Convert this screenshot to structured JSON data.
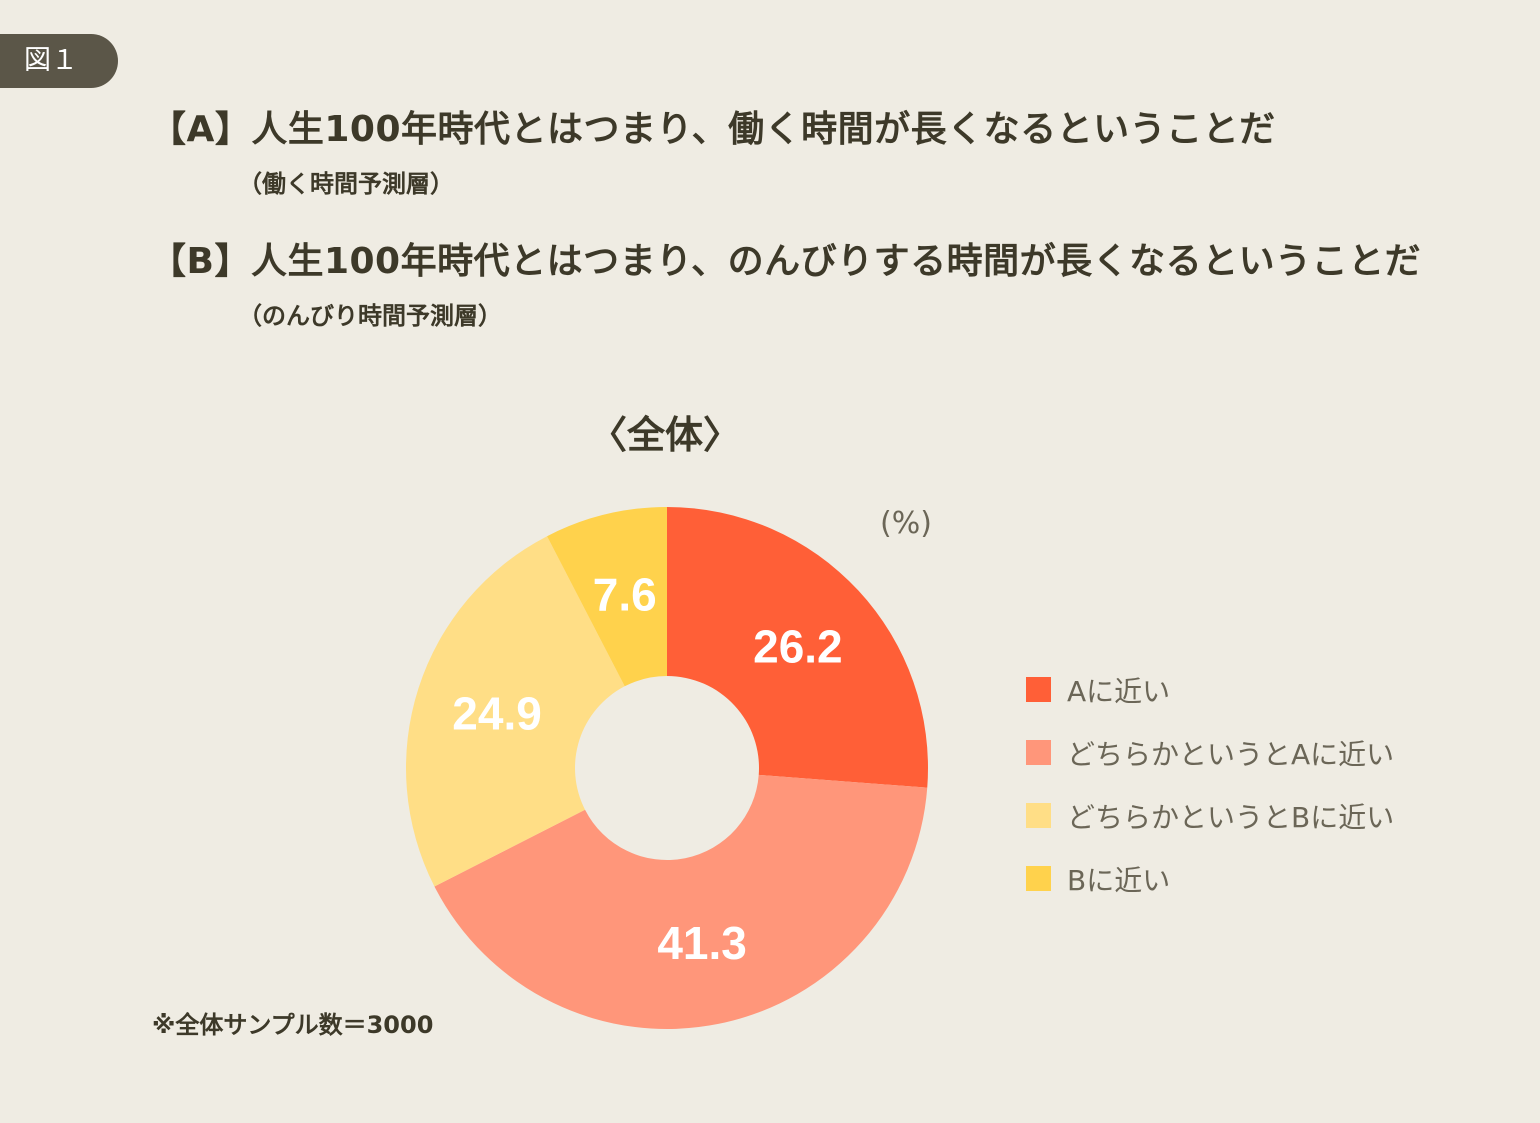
{
  "figure_label": "図１",
  "statements": {
    "a": {
      "title": "【A】人生100年時代とはつまり、働く時間が長くなるということだ",
      "subtitle": "（働く時間予測層）"
    },
    "b": {
      "title": "【B】人生100年時代とはつまり、のんびりする時間が長くなるということだ",
      "subtitle": "（のんびり時間予測層）"
    }
  },
  "chart_data": {
    "type": "pie",
    "donut": true,
    "title": "〈全体〉",
    "unit": "(%)",
    "categories": [
      "Aに近い",
      "どちらかというとAに近い",
      "どちらかというとBに近い",
      "Bに近い"
    ],
    "values": [
      26.2,
      41.3,
      24.9,
      7.6
    ],
    "colors": [
      "#ff5f37",
      "#ff967a",
      "#ffde86",
      "#ffd24c"
    ],
    "legend_position": "right"
  },
  "footnote": "※全体サンプル数＝3000"
}
